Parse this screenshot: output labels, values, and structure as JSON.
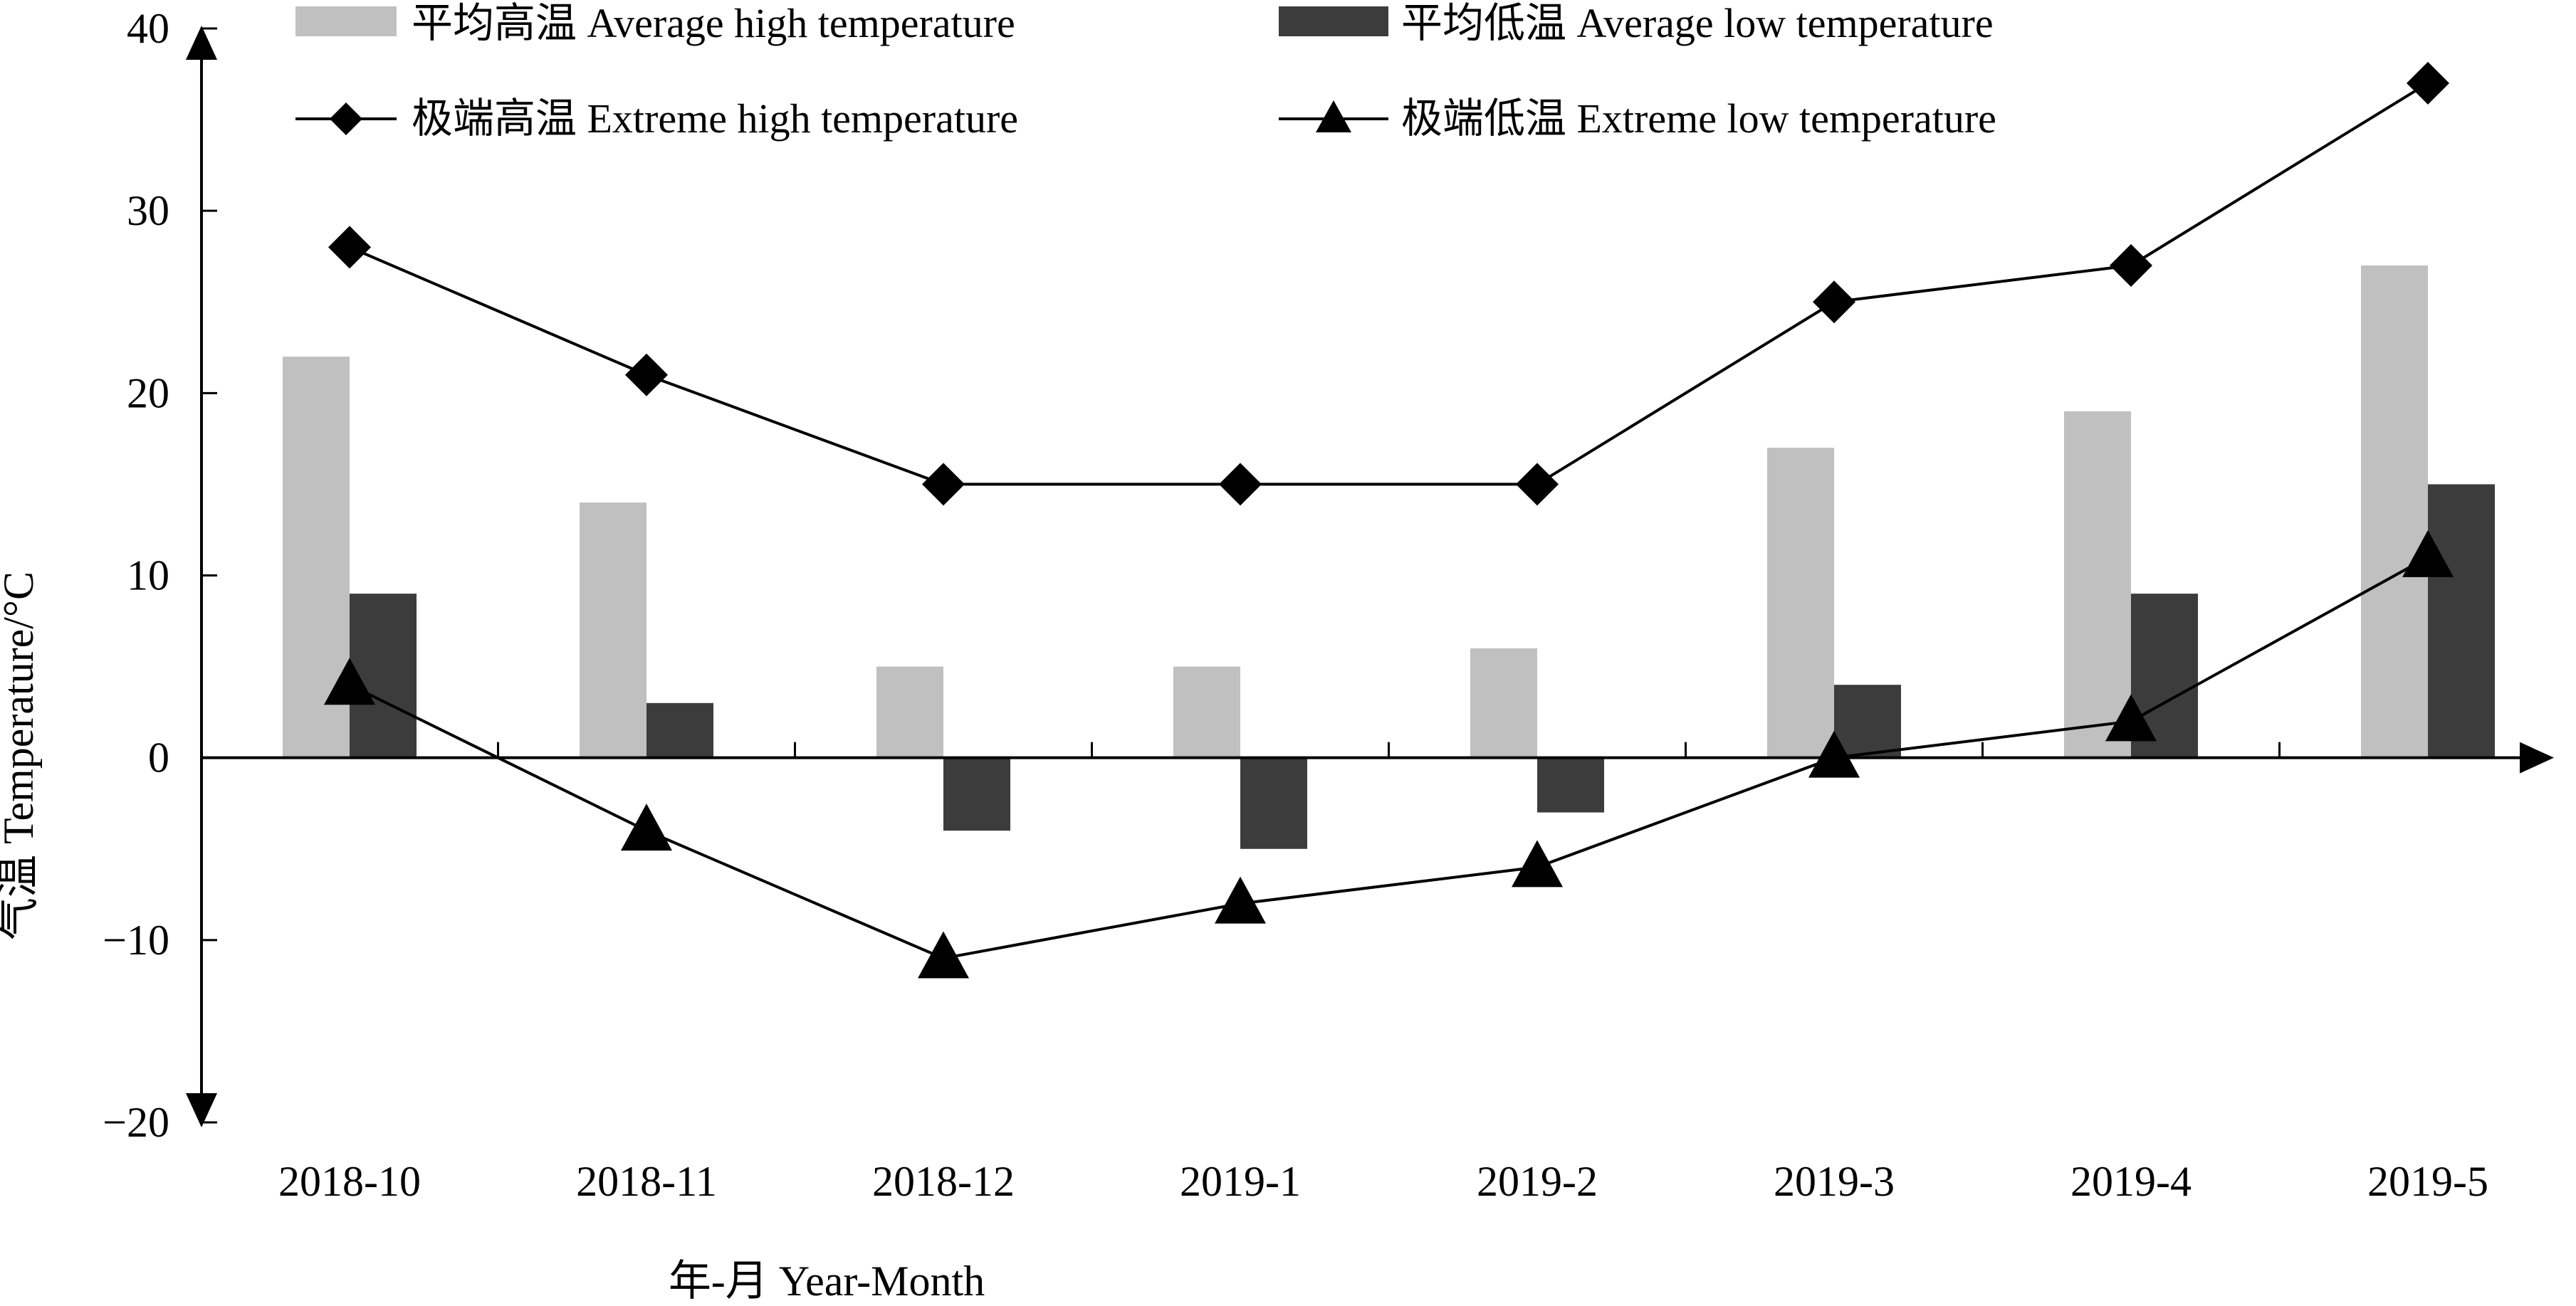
{
  "chart_data": {
    "type": "bar",
    "categories": [
      "2018-10",
      "2018-11",
      "2018-12",
      "2019-1",
      "2019-2",
      "2019-3",
      "2019-4",
      "2019-5"
    ],
    "xlabel": "年-月 Year-Month",
    "ylabel": "气温 Temperature/°C",
    "ylim": [
      -20,
      40
    ],
    "yticks": [
      40,
      30,
      20,
      10,
      0,
      -10,
      -20
    ],
    "ytick_labels": [
      "40",
      "30",
      "20",
      "10",
      "0",
      "−10",
      "−20"
    ],
    "grid": false,
    "legend_position": "top",
    "series": [
      {
        "name": "平均高温 Average high temperature",
        "type": "bar",
        "color": "#c0c0c0",
        "values": [
          22,
          14,
          5,
          5,
          6,
          17,
          19,
          27
        ]
      },
      {
        "name": "平均低温 Average low temperature",
        "type": "bar",
        "color": "#3c3c3c",
        "values": [
          9,
          3,
          -4,
          -5,
          -3,
          4,
          9,
          15
        ]
      },
      {
        "name": "极端高温 Extreme high temperature",
        "type": "line",
        "marker": "diamond",
        "color": "#000000",
        "values": [
          28,
          21,
          15,
          15,
          15,
          25,
          27,
          37
        ]
      },
      {
        "name": "极端低温 Extreme low temperature",
        "type": "line",
        "marker": "triangle",
        "color": "#000000",
        "values": [
          4,
          -4,
          -11,
          -8,
          -6,
          0,
          2,
          11
        ]
      }
    ]
  }
}
